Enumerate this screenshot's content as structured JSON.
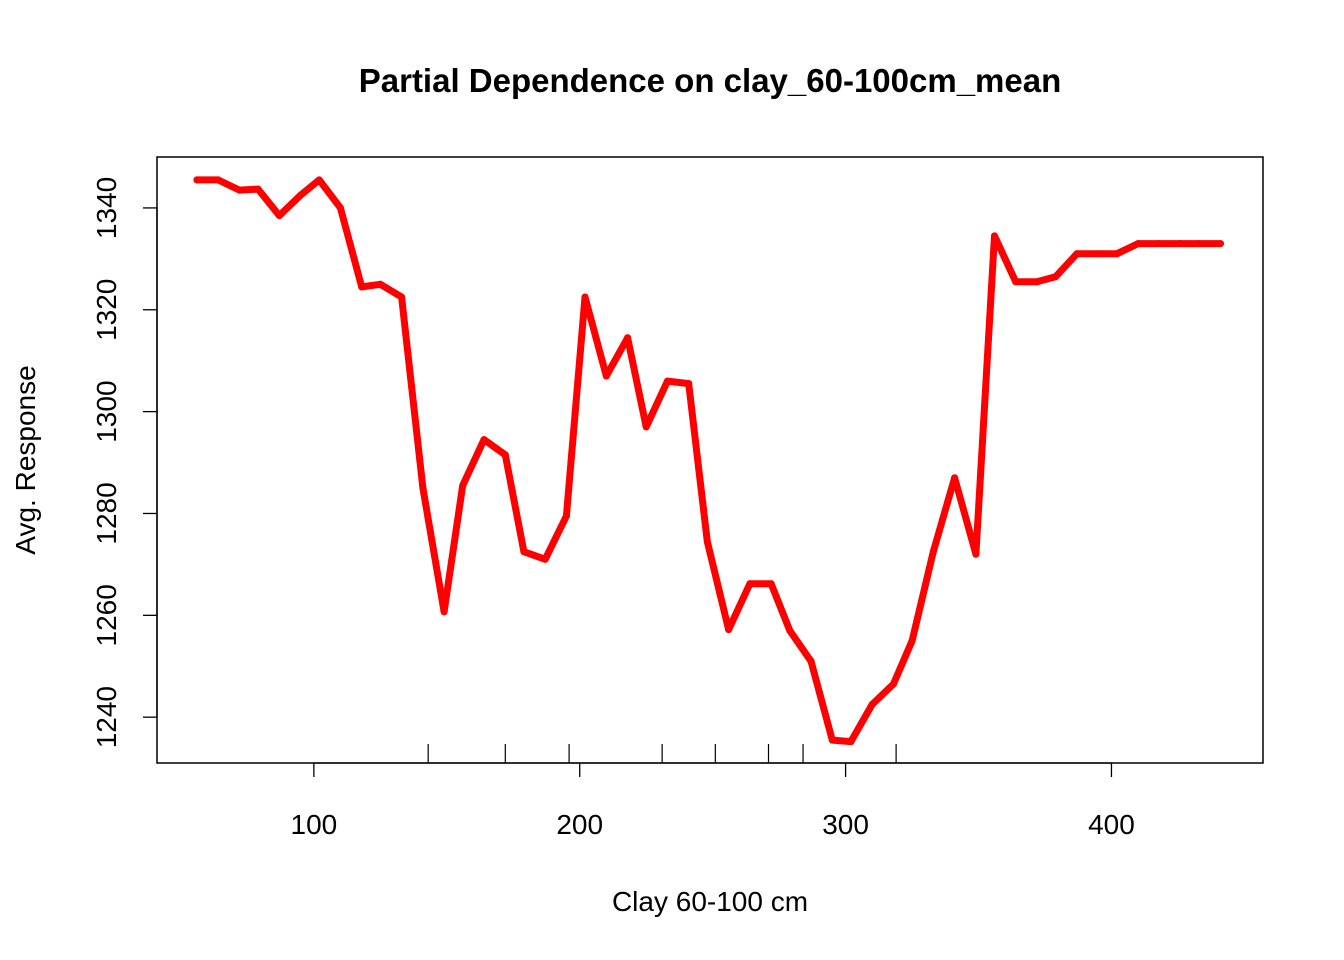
{
  "chart_data": {
    "type": "line",
    "title": "Partial Dependence on clay_60-100cm_mean",
    "xlabel": "Clay 60-100 cm",
    "ylabel": "Avg. Response",
    "xlim": [
      41,
      457
    ],
    "ylim": [
      1231,
      1350
    ],
    "xticks": [
      100,
      200,
      300,
      400
    ],
    "yticks": [
      1240,
      1260,
      1280,
      1300,
      1320,
      1340
    ],
    "rug": [
      143,
      172,
      196,
      231,
      251,
      271,
      284,
      319
    ],
    "grid": false,
    "legend": "none",
    "series": [
      {
        "color": "#ff0000",
        "x": [
          56,
          64,
          72,
          79,
          87,
          95,
          102,
          110,
          118,
          125,
          133,
          141,
          149,
          156,
          164,
          172,
          179,
          187,
          195,
          202,
          210,
          218,
          225,
          233,
          241,
          248,
          256,
          264,
          272,
          279,
          287,
          295,
          302,
          310,
          318,
          325,
          333,
          341,
          349,
          356,
          364,
          372,
          379,
          387,
          395,
          402,
          410,
          418,
          426,
          433,
          441
        ],
        "y": [
          1345.5,
          1345.5,
          1343.5,
          1343.7,
          1338.5,
          1342.5,
          1345.5,
          1340,
          1324.5,
          1325,
          1322.5,
          1285,
          1260.7,
          1285.5,
          1294.5,
          1291.5,
          1272.5,
          1271,
          1279.5,
          1322.5,
          1307,
          1314.5,
          1297,
          1306,
          1305.5,
          1274.5,
          1257.2,
          1266.2,
          1266.2,
          1257,
          1251,
          1235.5,
          1235.2,
          1242.5,
          1246.5,
          1255,
          1272.5,
          1287,
          1272,
          1334.5,
          1325.5,
          1325.5,
          1326.5,
          1331,
          1331,
          1331,
          1333,
          1333,
          1333,
          1333,
          1333
        ]
      }
    ]
  }
}
